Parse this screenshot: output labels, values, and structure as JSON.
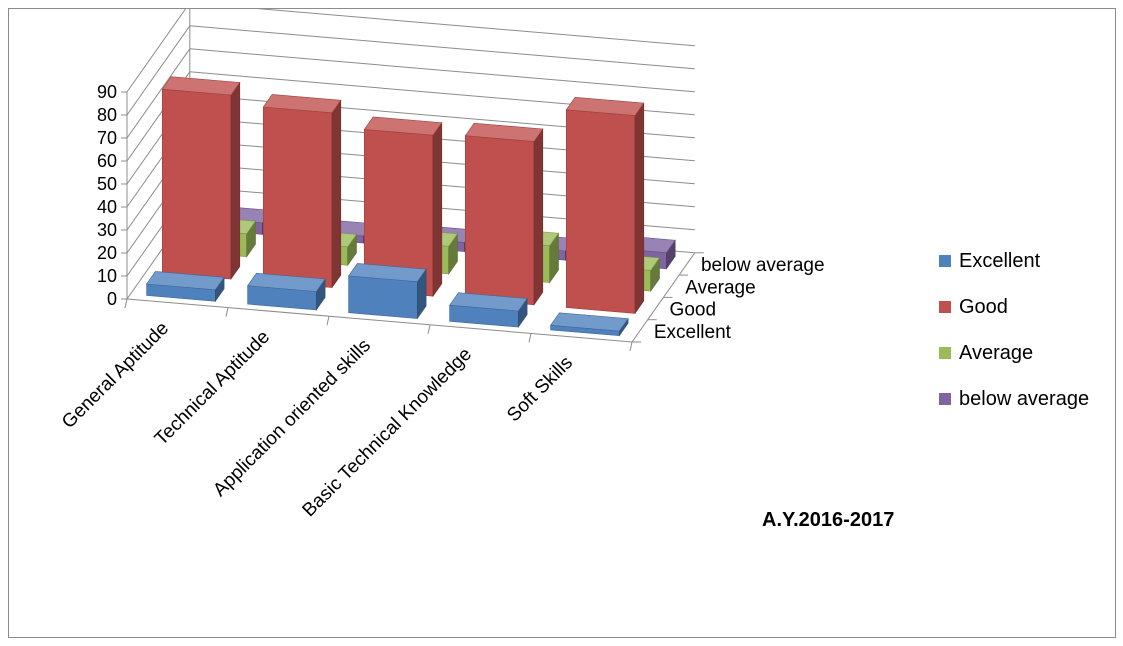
{
  "chart_data": {
    "type": "bar",
    "title": "A.Y.2016-2017",
    "xlabel": "",
    "ylabel": "",
    "ylim": [
      0,
      90
    ],
    "yticks": [
      0,
      10,
      20,
      30,
      40,
      50,
      60,
      70,
      80,
      90
    ],
    "categories": [
      "General Aptitude",
      "Technical Aptitude",
      "Application oriented skills",
      "Basic Technical Knowledge",
      "Soft Skills"
    ],
    "depth_labels": [
      "Excellent",
      "Good",
      "Average",
      "below average"
    ],
    "series": [
      {
        "name": "Excellent",
        "color": "#4f81bd",
        "values": [
          5,
          8,
          16,
          7,
          2
        ]
      },
      {
        "name": "Good",
        "color": "#c0504d",
        "values": [
          80,
          76,
          70,
          71,
          86
        ]
      },
      {
        "name": "Average",
        "color": "#9bbb59",
        "values": [
          10,
          8,
          12,
          16,
          9
        ]
      },
      {
        "name": "below average",
        "color": "#8064a2",
        "values": [
          5,
          3,
          4,
          4,
          7
        ]
      }
    ],
    "legend_position": "right",
    "grid": true
  }
}
